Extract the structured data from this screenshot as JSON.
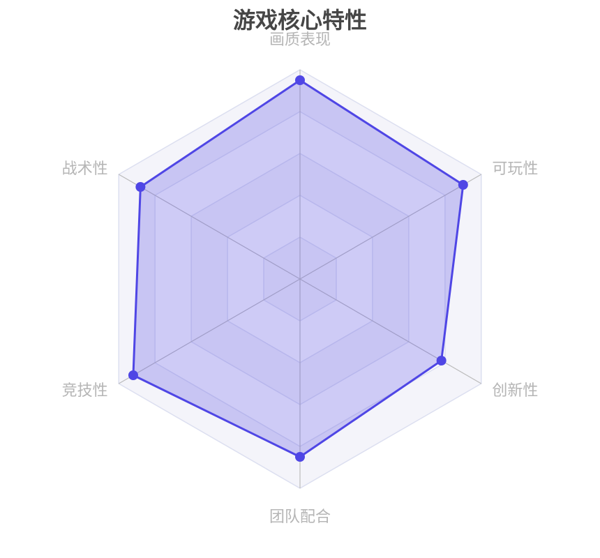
{
  "chart_data": {
    "type": "radar",
    "title": "游戏核心特性",
    "indicators": [
      "画质表现",
      "可玩性",
      "创新性",
      "团队配合",
      "竞技性",
      "战术性"
    ],
    "max": 100,
    "split_number": 5,
    "series": [
      {
        "values": [
          95,
          90,
          78,
          85,
          92,
          88
        ]
      }
    ],
    "colors": {
      "line": "#4f46e5",
      "area": "rgba(99,91,230,0.3)",
      "axis": "#bbbbbb",
      "split_line": "#dcdff0",
      "title": "#464646",
      "label": "#b5b5b5"
    }
  }
}
